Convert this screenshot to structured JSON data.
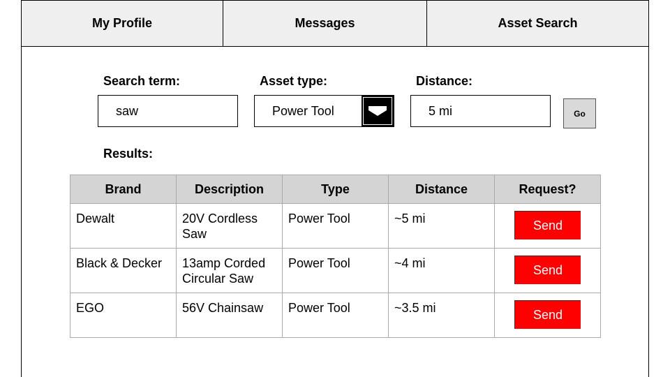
{
  "nav": {
    "tabs": [
      {
        "label": "My Profile"
      },
      {
        "label": "Messages"
      },
      {
        "label": "Asset Search"
      }
    ]
  },
  "search": {
    "term_label": "Search term:",
    "term_value": "saw",
    "type_label": "Asset type:",
    "type_value": "Power Tool",
    "distance_label": "Distance:",
    "distance_value": "5 mi",
    "go_label": "Go"
  },
  "results": {
    "label": "Results:",
    "columns": [
      "Brand",
      "Description",
      "Type",
      "Distance",
      "Request?"
    ],
    "rows": [
      {
        "brand": "Dewalt",
        "description": "20V Cordless Saw",
        "type": "Power Tool",
        "distance": "~5 mi",
        "action": "Send"
      },
      {
        "brand": "Black & Decker",
        "description": "13amp Corded Circular Saw",
        "type": "Power Tool",
        "distance": "~4 mi",
        "action": "Send"
      },
      {
        "brand": "EGO",
        "description": "56V Chainsaw",
        "type": "Power Tool",
        "distance": "~3.5 mi",
        "action": "Send"
      }
    ]
  },
  "colors": {
    "nav_bg": "#efefef",
    "header_bg": "#d4d4d4",
    "send_bg": "#ff0000",
    "go_bg": "#d9d9d9"
  },
  "icons": {
    "dropdown": "chevron-down-icon"
  }
}
